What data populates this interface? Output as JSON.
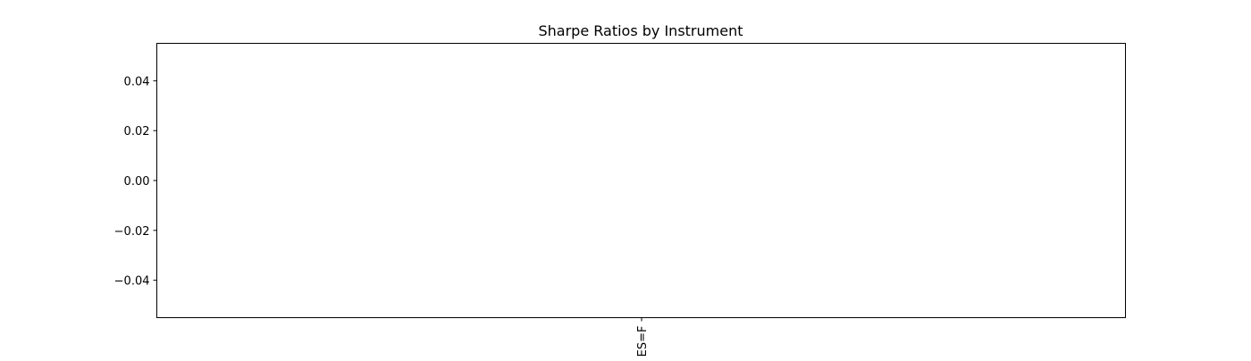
{
  "chart_data": {
    "type": "bar",
    "title": "Sharpe Ratios by Instrument",
    "xlabel": "",
    "ylabel": "",
    "categories": [
      "ES=F"
    ],
    "values": [
      null
    ],
    "ylim": [
      -0.055,
      0.055
    ],
    "y_ticks": [
      0.04,
      0.02,
      0.0,
      -0.02,
      -0.04
    ],
    "y_tick_labels": [
      "0.04",
      "0.02",
      "0.00",
      "−0.02",
      "−0.04"
    ],
    "x_tick_rotation": "vertical",
    "grid": false,
    "legend": "none"
  }
}
